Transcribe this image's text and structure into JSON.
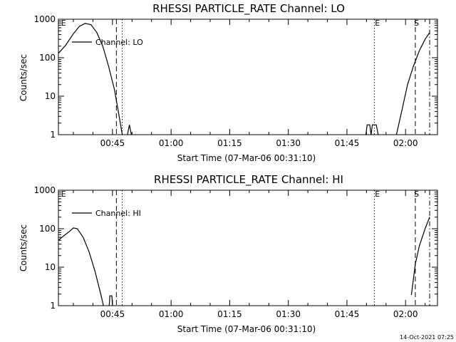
{
  "footer": {
    "timestamp": "14-Oct-2021 07:25"
  },
  "chart_data": [
    {
      "type": "line",
      "title": "RHESSI PARTICLE_RATE Channel: LO",
      "ylabel": "Counts/sec",
      "xlabel": "Start Time (07-Mar-06 00:31:10)",
      "y_scale": "log",
      "ylim": [
        1,
        1000
      ],
      "xlim": [
        "00:31:10",
        "02:08:10"
      ],
      "x_ticks": [
        "00:45",
        "01:00",
        "01:15",
        "01:30",
        "01:45",
        "02:00"
      ],
      "y_ticks": [
        "1",
        "10",
        "100",
        "1000"
      ],
      "legend": {
        "placement": "top-left",
        "entries": [
          "Channel: LO"
        ]
      },
      "series": [
        {
          "name": "Channel: LO",
          "segments": [
            [
              [
                "00:31:10",
                130
              ],
              [
                "00:33:00",
                210
              ],
              [
                "00:35:00",
                420
              ],
              [
                "00:36:30",
                650
              ],
              [
                "00:38:00",
                780
              ],
              [
                "00:39:30",
                720
              ],
              [
                "00:41:00",
                450
              ],
              [
                "00:42:30",
                200
              ],
              [
                "00:44:00",
                60
              ],
              [
                "00:45:30",
                15
              ],
              [
                "00:46:30",
                4
              ],
              [
                "00:47:30",
                1
              ]
            ],
            [
              [
                "00:48:50",
                1
              ],
              [
                "00:49:20",
                1.8
              ],
              [
                "00:49:50",
                1
              ]
            ],
            [
              [
                "01:49:50",
                1
              ],
              [
                "01:50:10",
                1.8
              ],
              [
                "01:50:50",
                1.8
              ],
              [
                "01:51:10",
                1
              ],
              [
                "01:51:30",
                1.8
              ],
              [
                "01:52:30",
                1.8
              ],
              [
                "01:53:00",
                1
              ]
            ],
            [
              [
                "01:57:40",
                1
              ],
              [
                "01:59:00",
                4
              ],
              [
                "02:00:30",
                20
              ],
              [
                "02:02:00",
                60
              ],
              [
                "02:03:30",
                150
              ],
              [
                "02:05:00",
                300
              ],
              [
                "02:06:10",
                450
              ]
            ]
          ]
        }
      ],
      "vlines": [
        {
          "time": "00:46:00",
          "style": "dashed"
        },
        {
          "time": "00:47:30",
          "style": "dotted"
        },
        {
          "time": "01:52:00",
          "style": "dotted"
        },
        {
          "time": "02:02:30",
          "style": "dashed"
        },
        {
          "time": "02:06:10",
          "style": "dashdot"
        }
      ],
      "markers": [
        {
          "label": "E",
          "time": "00:31:50"
        },
        {
          "label": "E",
          "time": "01:52:10"
        },
        {
          "label": "S",
          "time": "02:02:10"
        }
      ]
    },
    {
      "type": "line",
      "title": "RHESSI PARTICLE_RATE Channel: HI",
      "ylabel": "Counts/sec",
      "xlabel": "Start Time (07-Mar-06 00:31:10)",
      "y_scale": "log",
      "ylim": [
        1,
        1000
      ],
      "xlim": [
        "00:31:10",
        "02:08:10"
      ],
      "x_ticks": [
        "00:45",
        "01:00",
        "01:15",
        "01:30",
        "01:45",
        "02:00"
      ],
      "y_ticks": [
        "1",
        "10",
        "100",
        "1000"
      ],
      "legend": {
        "placement": "top-left",
        "entries": [
          "Channel: HI"
        ]
      },
      "series": [
        {
          "name": "Channel: HI",
          "segments": [
            [
              [
                "00:31:10",
                50
              ],
              [
                "00:32:30",
                65
              ],
              [
                "00:34:00",
                85
              ],
              [
                "00:35:00",
                105
              ],
              [
                "00:36:00",
                100
              ],
              [
                "00:37:30",
                60
              ],
              [
                "00:39:00",
                25
              ],
              [
                "00:40:30",
                8
              ],
              [
                "00:42:00",
                2
              ],
              [
                "00:42:30",
                1.2
              ],
              [
                "00:42:40",
                1
              ]
            ],
            [
              [
                "00:44:10",
                1
              ],
              [
                "00:44:20",
                1.8
              ],
              [
                "00:44:50",
                1.8
              ],
              [
                "00:45:00",
                1
              ]
            ],
            [
              [
                "02:01:30",
                1.9
              ],
              [
                "02:02:30",
                12
              ],
              [
                "02:03:30",
                35
              ],
              [
                "02:05:00",
                100
              ],
              [
                "02:06:10",
                200
              ]
            ]
          ]
        }
      ],
      "vlines": [
        {
          "time": "00:46:00",
          "style": "dashed"
        },
        {
          "time": "00:47:30",
          "style": "dotted"
        },
        {
          "time": "01:52:00",
          "style": "dotted"
        },
        {
          "time": "02:02:30",
          "style": "dashed"
        },
        {
          "time": "02:06:10",
          "style": "dashdot"
        }
      ],
      "markers": [
        {
          "label": "E",
          "time": "00:31:50"
        },
        {
          "label": "E",
          "time": "01:52:10"
        },
        {
          "label": "S",
          "time": "02:02:10"
        }
      ]
    }
  ]
}
